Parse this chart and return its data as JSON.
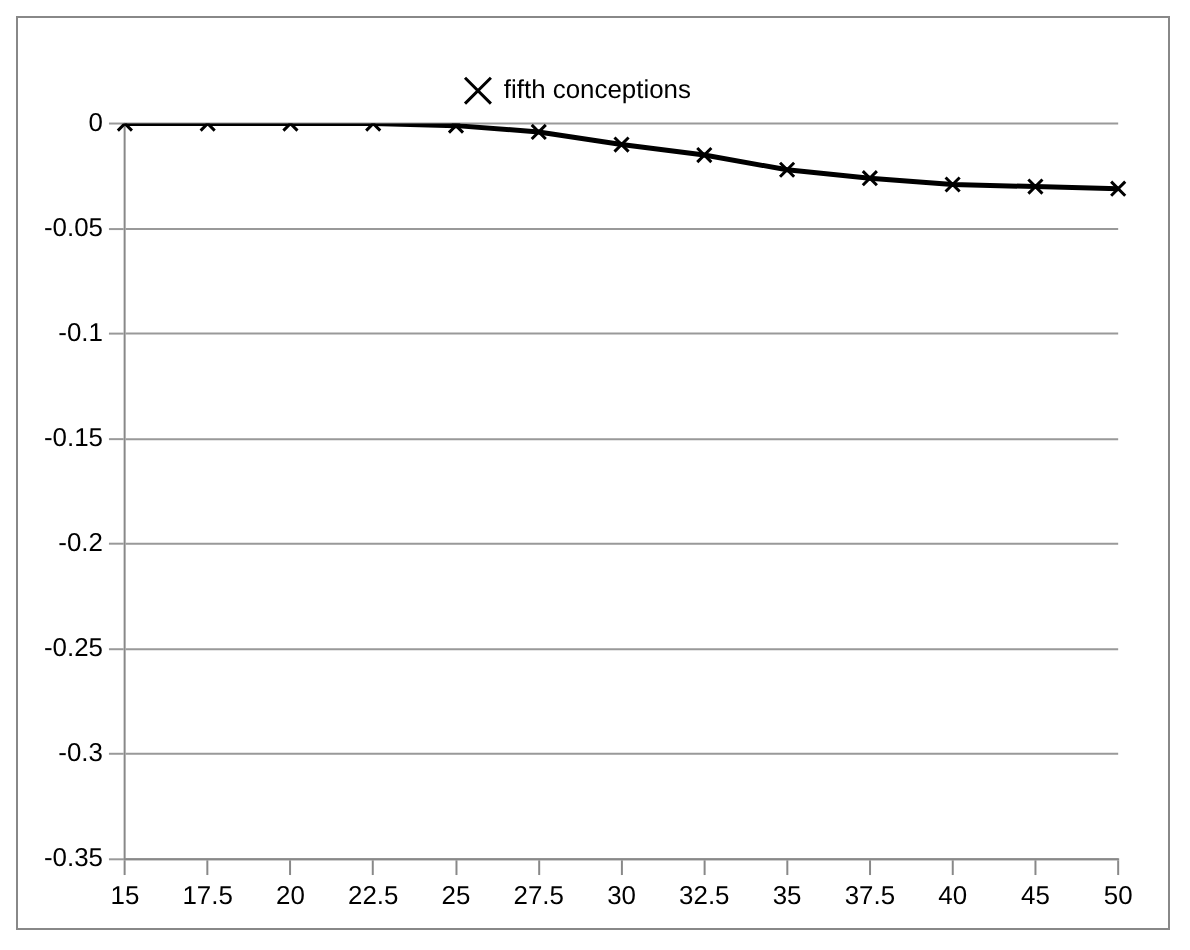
{
  "chart_data": {
    "type": "line",
    "categories": [
      "15",
      "17.5",
      "20",
      "22.5",
      "25",
      "27.5",
      "30",
      "32.5",
      "35",
      "37.5",
      "40",
      "45",
      "50"
    ],
    "series": [
      {
        "name": "fifth conceptions",
        "color": "#000000",
        "values": [
          0,
          0,
          0,
          0,
          -0.001,
          -0.004,
          -0.01,
          -0.015,
          -0.022,
          -0.026,
          -0.029,
          -0.03,
          -0.031
        ]
      }
    ],
    "ylim": [
      -0.35,
      0
    ],
    "yticks": [
      0,
      -0.05,
      -0.1,
      -0.15,
      -0.2,
      -0.25,
      -0.3,
      -0.35
    ],
    "grid": "y",
    "legend": "top",
    "marker": "cross",
    "line_style": "solid"
  }
}
